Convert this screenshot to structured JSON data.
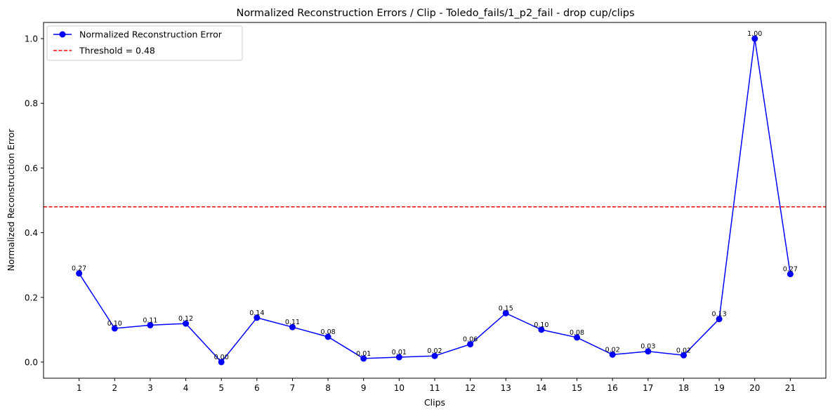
{
  "chart_data": {
    "type": "line",
    "title": "Normalized Reconstruction Errors / Clip - Toledo_fails/1_p2_fail - drop cup/clips",
    "xlabel": "Clips",
    "ylabel": "Normalized Reconstruction Error",
    "x": [
      1,
      2,
      3,
      4,
      5,
      6,
      7,
      8,
      9,
      10,
      11,
      12,
      13,
      14,
      15,
      16,
      17,
      18,
      19,
      20,
      21
    ],
    "xlim": [
      0.0,
      22.0
    ],
    "ylim": [
      -0.05,
      1.05
    ],
    "yticks": [
      0.0,
      0.2,
      0.4,
      0.6,
      0.8,
      1.0
    ],
    "ytick_labels": [
      "0.0",
      "0.2",
      "0.4",
      "0.6",
      "0.8",
      "1.0"
    ],
    "series": [
      {
        "name": "Normalized Reconstruction Error",
        "color": "#0000ff",
        "marker": "circle",
        "values": [
          0.274,
          0.104,
          0.114,
          0.119,
          0.0,
          0.137,
          0.108,
          0.078,
          0.011,
          0.015,
          0.019,
          0.055,
          0.151,
          0.1,
          0.076,
          0.023,
          0.033,
          0.021,
          0.133,
          1.0,
          0.272
        ],
        "labels": [
          "0.27",
          "0.10",
          "0.11",
          "0.12",
          "0.00",
          "0.14",
          "0.11",
          "0.08",
          "0.01",
          "0.01",
          "0.02",
          "0.06",
          "0.15",
          "0.10",
          "0.08",
          "0.02",
          "0.03",
          "0.02",
          "0.13",
          "1.00",
          "0.27"
        ]
      }
    ],
    "threshold": {
      "name": "Threshold = 0.48",
      "value": 0.48,
      "color": "#ff0000",
      "style": "dashed"
    },
    "legend": "top-left",
    "grid": false
  }
}
